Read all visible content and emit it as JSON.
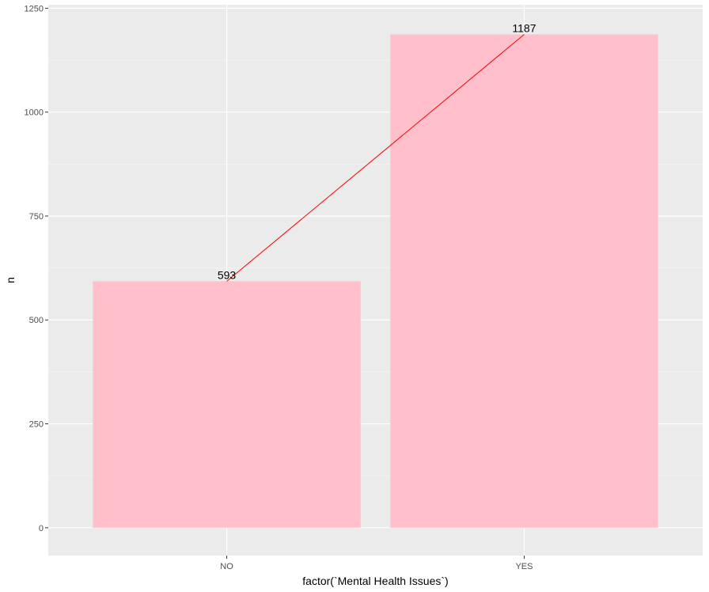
{
  "chart_data": {
    "type": "bar",
    "categories": [
      "NO",
      "YES"
    ],
    "values": [
      593,
      1187
    ],
    "data_labels": [
      "593",
      "1187"
    ],
    "xlabel": "factor(`Mental Health Issues`)",
    "ylabel": "n",
    "ylim": [
      0,
      1250
    ],
    "yticks": [
      0,
      250,
      500,
      750,
      1000,
      1250
    ],
    "ytick_labels": [
      "0",
      "250",
      "500",
      "750",
      "1000",
      "1250"
    ],
    "grid": true,
    "legend": "none",
    "overlay_line": {
      "type": "line",
      "x": [
        "NO",
        "YES"
      ],
      "y": [
        593,
        1187
      ]
    },
    "colors": {
      "panel_background": "#ebebeb",
      "grid_major": "#ffffff",
      "grid_minor": "#f5f5f5",
      "bar_fill": "#ffc0cb",
      "line": "#ff0000"
    }
  }
}
